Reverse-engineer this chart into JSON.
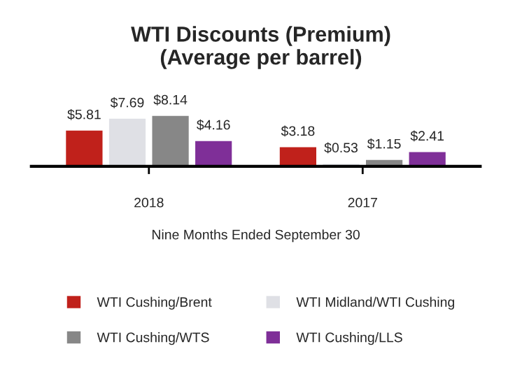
{
  "chart_data": {
    "type": "bar",
    "title": "WTI Discounts (Premium)\n(Average per barrel)",
    "xlabel": "Nine Months Ended September 30",
    "categories": [
      "2018",
      "2017"
    ],
    "series": [
      {
        "name": "WTI Cushing/Brent",
        "color": "#c0211b",
        "values": [
          5.81,
          3.18
        ],
        "value_labels": [
          "$5.81",
          "$3.18"
        ]
      },
      {
        "name": "WTI Midland/WTI Cushing",
        "color": "#dfe0e5",
        "values": [
          7.69,
          0.53
        ],
        "value_labels": [
          "$7.69",
          "$0.53"
        ]
      },
      {
        "name": "WTI Cushing/WTS",
        "color": "#878787",
        "values": [
          8.14,
          1.15
        ],
        "value_labels": [
          "$8.14",
          "$1.15"
        ]
      },
      {
        "name": "WTI Cushing/LLS",
        "color": "#7f2f98",
        "values": [
          4.16,
          2.41
        ],
        "value_labels": [
          "$4.16",
          "$2.41"
        ]
      }
    ],
    "grid": false,
    "legend": "bottom"
  }
}
